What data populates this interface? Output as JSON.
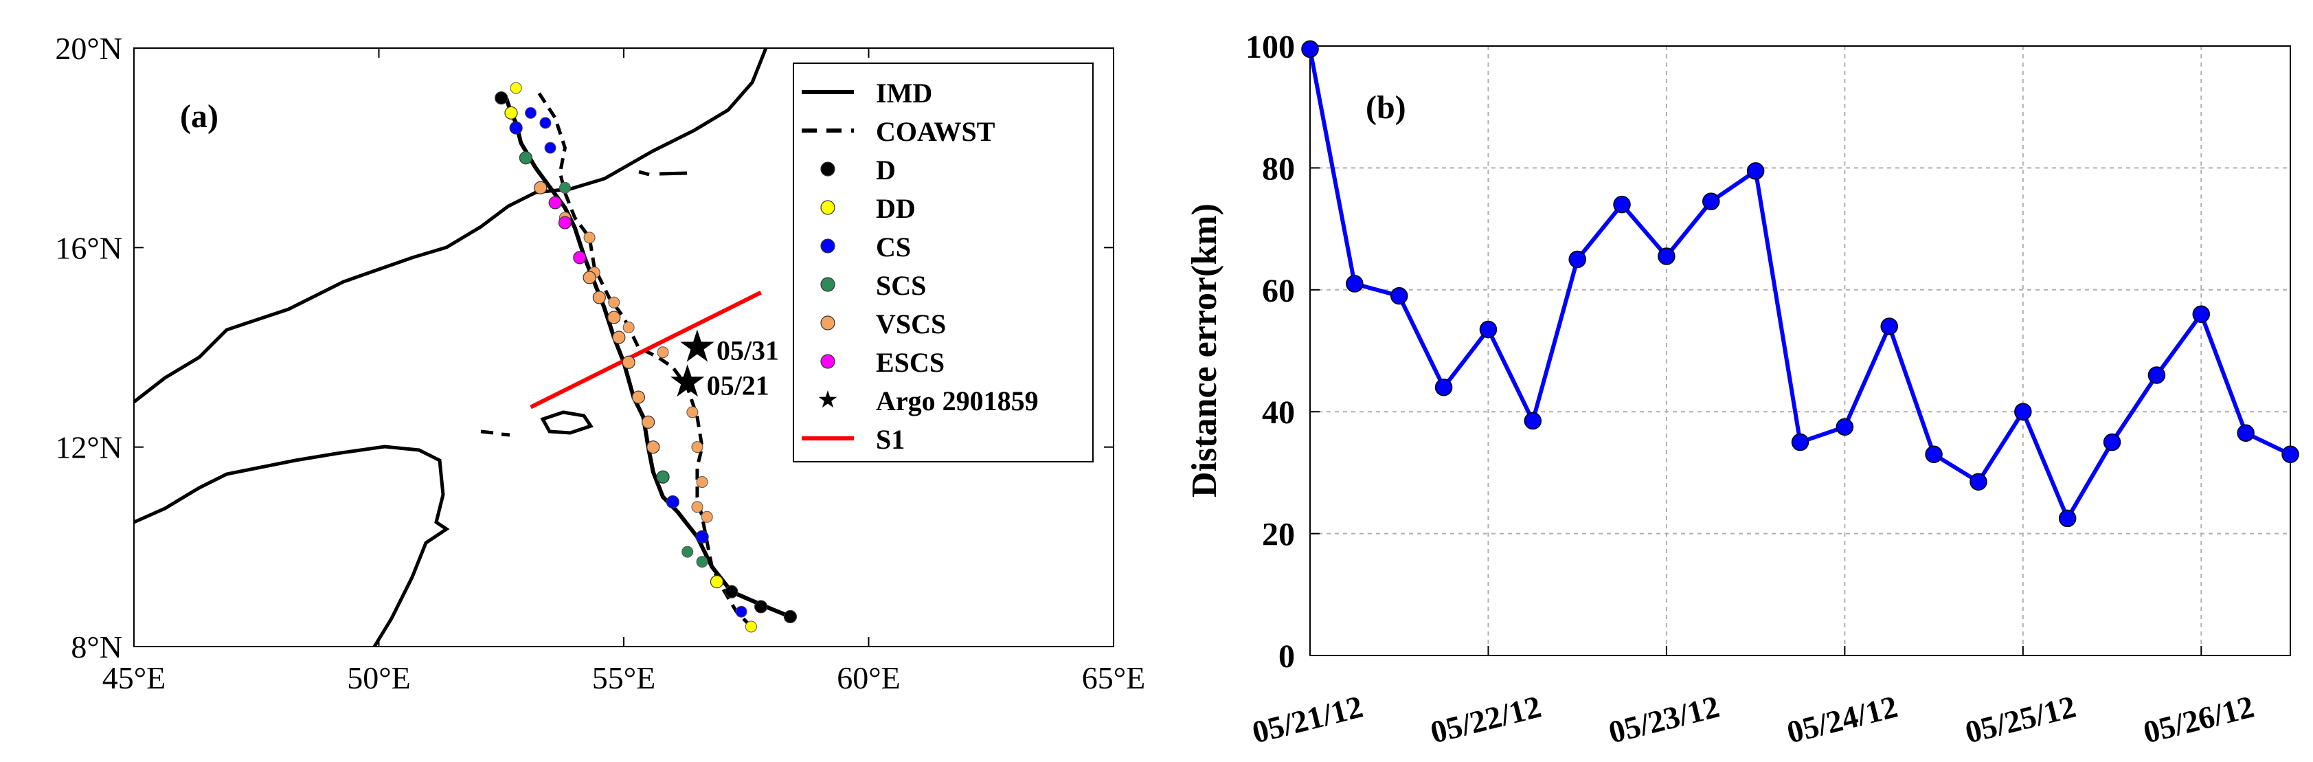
{
  "colors": {
    "D": "#000000",
    "DD": "#ffff00",
    "CS": "#0000ff",
    "SCS": "#2e8b57",
    "VSCS": "#f4a460",
    "ESCS": "#ff00ff",
    "line_b": "#0000ff",
    "section": "#ff0000",
    "grid": "#b0b0b0"
  },
  "chart_data": [
    {
      "type": "map",
      "panel_label": "(a)",
      "xlim": [
        45,
        65
      ],
      "ylim": [
        8,
        20
      ],
      "x_ticks": [
        45,
        50,
        55,
        60,
        65
      ],
      "x_tick_labels": [
        "45°E",
        "50°E",
        "55°E",
        "60°E",
        "65°E"
      ],
      "y_ticks": [
        8,
        12,
        16,
        20
      ],
      "y_tick_labels": [
        "8°N",
        "12°N",
        "16°N",
        "20°N"
      ],
      "legend": [
        {
          "label": "IMD",
          "kind": "line"
        },
        {
          "label": "COAWST",
          "kind": "dash"
        },
        {
          "label": "D",
          "kind": "D"
        },
        {
          "label": "DD",
          "kind": "DD"
        },
        {
          "label": "CS",
          "kind": "CS"
        },
        {
          "label": "SCS",
          "kind": "SCS"
        },
        {
          "label": "VSCS",
          "kind": "VSCS"
        },
        {
          "label": "ESCS",
          "kind": "ESCS"
        },
        {
          "label": "Argo 2901859",
          "kind": "star"
        },
        {
          "label": "S1",
          "kind": "section"
        }
      ],
      "track_imd": [
        [
          58.4,
          8.6
        ],
        [
          57.9,
          8.8
        ],
        [
          57.2,
          9.1
        ],
        [
          56.8,
          9.6
        ],
        [
          56.5,
          10.2
        ],
        [
          56.1,
          10.7
        ],
        [
          55.8,
          11.0
        ],
        [
          55.6,
          11.5
        ],
        [
          55.5,
          12.0
        ],
        [
          55.4,
          12.6
        ],
        [
          55.2,
          13.0
        ],
        [
          55.0,
          13.7
        ],
        [
          54.8,
          14.2
        ],
        [
          54.6,
          14.8
        ],
        [
          54.4,
          15.3
        ],
        [
          54.2,
          15.8
        ],
        [
          54.0,
          16.4
        ],
        [
          53.8,
          16.8
        ],
        [
          53.5,
          17.2
        ],
        [
          53.2,
          17.6
        ],
        [
          52.9,
          18.1
        ],
        [
          52.8,
          18.5
        ],
        [
          52.7,
          18.7
        ],
        [
          52.6,
          19.0
        ]
      ],
      "points_imd": [
        {
          "lon": 58.4,
          "lat": 8.6,
          "cat": "D"
        },
        {
          "lon": 57.8,
          "lat": 8.8,
          "cat": "D"
        },
        {
          "lon": 57.2,
          "lat": 9.1,
          "cat": "D"
        },
        {
          "lon": 56.9,
          "lat": 9.3,
          "cat": "DD"
        },
        {
          "lon": 56.6,
          "lat": 10.2,
          "cat": "CS"
        },
        {
          "lon": 56.0,
          "lat": 10.9,
          "cat": "CS"
        },
        {
          "lon": 55.8,
          "lat": 11.4,
          "cat": "SCS"
        },
        {
          "lon": 55.6,
          "lat": 12.0,
          "cat": "VSCS"
        },
        {
          "lon": 55.5,
          "lat": 12.5,
          "cat": "VSCS"
        },
        {
          "lon": 55.3,
          "lat": 13.0,
          "cat": "VSCS"
        },
        {
          "lon": 55.1,
          "lat": 13.7,
          "cat": "VSCS"
        },
        {
          "lon": 54.9,
          "lat": 14.2,
          "cat": "VSCS"
        },
        {
          "lon": 54.8,
          "lat": 14.6,
          "cat": "VSCS"
        },
        {
          "lon": 54.5,
          "lat": 15.0,
          "cat": "VSCS"
        },
        {
          "lon": 54.3,
          "lat": 15.4,
          "cat": "VSCS"
        },
        {
          "lon": 54.1,
          "lat": 15.8,
          "cat": "ESCS"
        },
        {
          "lon": 53.8,
          "lat": 16.5,
          "cat": "ESCS"
        },
        {
          "lon": 53.6,
          "lat": 16.9,
          "cat": "ESCS"
        },
        {
          "lon": 53.3,
          "lat": 17.2,
          "cat": "VSCS"
        },
        {
          "lon": 53.0,
          "lat": 17.8,
          "cat": "SCS"
        },
        {
          "lon": 52.8,
          "lat": 18.4,
          "cat": "CS"
        },
        {
          "lon": 52.7,
          "lat": 18.7,
          "cat": "DD"
        },
        {
          "lon": 52.5,
          "lat": 19.0,
          "cat": "D"
        }
      ],
      "track_coawst": [
        [
          57.6,
          8.4
        ],
        [
          57.3,
          8.7
        ],
        [
          57.0,
          9.2
        ],
        [
          56.8,
          9.6
        ],
        [
          56.7,
          10.1
        ],
        [
          56.6,
          10.6
        ],
        [
          56.5,
          11.0
        ],
        [
          56.5,
          11.6
        ],
        [
          56.6,
          12.0
        ],
        [
          56.5,
          12.6
        ],
        [
          56.3,
          13.2
        ],
        [
          56.0,
          13.6
        ],
        [
          55.7,
          13.8
        ],
        [
          55.3,
          14.0
        ],
        [
          55.0,
          14.6
        ],
        [
          54.7,
          15.0
        ],
        [
          54.4,
          15.6
        ],
        [
          54.3,
          16.2
        ],
        [
          54.0,
          16.6
        ],
        [
          53.8,
          17.1
        ],
        [
          53.7,
          17.5
        ],
        [
          53.8,
          18.0
        ],
        [
          53.6,
          18.6
        ],
        [
          53.2,
          19.2
        ]
      ],
      "points_coawst": [
        {
          "lon": 57.6,
          "lat": 8.4,
          "cat": "DD"
        },
        {
          "lon": 57.4,
          "lat": 8.7,
          "cat": "CS"
        },
        {
          "lon": 56.6,
          "lat": 9.7,
          "cat": "SCS"
        },
        {
          "lon": 56.3,
          "lat": 9.9,
          "cat": "SCS"
        },
        {
          "lon": 56.7,
          "lat": 10.6,
          "cat": "VSCS"
        },
        {
          "lon": 56.5,
          "lat": 10.8,
          "cat": "VSCS"
        },
        {
          "lon": 56.6,
          "lat": 11.3,
          "cat": "VSCS"
        },
        {
          "lon": 56.5,
          "lat": 12.0,
          "cat": "VSCS"
        },
        {
          "lon": 56.4,
          "lat": 12.7,
          "cat": "VSCS"
        },
        {
          "lon": 55.8,
          "lat": 13.9,
          "cat": "VSCS"
        },
        {
          "lon": 55.1,
          "lat": 14.4,
          "cat": "VSCS"
        },
        {
          "lon": 54.8,
          "lat": 14.9,
          "cat": "VSCS"
        },
        {
          "lon": 54.4,
          "lat": 15.5,
          "cat": "VSCS"
        },
        {
          "lon": 54.3,
          "lat": 16.2,
          "cat": "VSCS"
        },
        {
          "lon": 53.8,
          "lat": 16.6,
          "cat": "VSCS"
        },
        {
          "lon": 53.8,
          "lat": 17.2,
          "cat": "SCS"
        },
        {
          "lon": 53.5,
          "lat": 18.0,
          "cat": "CS"
        },
        {
          "lon": 53.4,
          "lat": 18.5,
          "cat": "CS"
        },
        {
          "lon": 53.1,
          "lat": 18.7,
          "cat": "CS"
        },
        {
          "lon": 52.8,
          "lat": 19.2,
          "cat": "DD"
        }
      ],
      "argo": [
        {
          "lon": 56.5,
          "lat": 14.0,
          "label": "05/31"
        },
        {
          "lon": 56.3,
          "lat": 13.3,
          "label": "05/21"
        }
      ],
      "section_s1": [
        [
          53.1,
          12.8
        ],
        [
          57.8,
          15.1
        ]
      ]
    },
    {
      "type": "line",
      "panel_label": "(b)",
      "ylabel": "Distance error(km)",
      "xlabel": "",
      "ylim": [
        0,
        100
      ],
      "y_ticks": [
        0,
        20,
        40,
        60,
        80,
        100
      ],
      "xlim": [
        0,
        5.5
      ],
      "x_ticks": [
        0,
        1,
        2,
        3,
        4,
        5
      ],
      "x_tick_labels": [
        "05/21/12",
        "05/22/12",
        "05/23/12",
        "05/24/12",
        "05/25/12",
        "05/26/12"
      ],
      "x": [
        0,
        0.25,
        0.5,
        0.75,
        1.0,
        1.25,
        1.5,
        1.75,
        2.0,
        2.25,
        2.5,
        2.75,
        3.0,
        3.25,
        3.5,
        3.75,
        4.0,
        4.25,
        4.5,
        4.75,
        5.0,
        5.25,
        5.5
      ],
      "values": [
        99.5,
        61,
        59,
        44,
        53.5,
        38.5,
        65,
        74,
        65.5,
        74.5,
        79.5,
        35,
        37.5,
        54,
        33,
        28.5,
        40,
        22.5,
        35,
        46,
        56,
        36.5,
        33
      ]
    }
  ]
}
